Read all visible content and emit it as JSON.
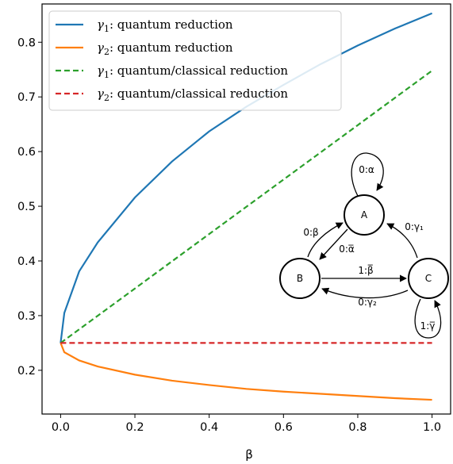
{
  "chart_data": {
    "type": "line",
    "title": "",
    "xlabel": "β",
    "ylabel": "",
    "xlim": [
      -0.05,
      1.05
    ],
    "ylim": [
      0.12,
      0.87
    ],
    "xticks": [
      "0.0",
      "0.2",
      "0.4",
      "0.6",
      "0.8",
      "1.0"
    ],
    "yticks": [
      "0.2",
      "0.3",
      "0.4",
      "0.5",
      "0.6",
      "0.7",
      "0.8"
    ],
    "grid": false,
    "legend_position": "top-left",
    "series": [
      {
        "name": "γ1: quantum reduction",
        "color": "#1f77b4",
        "style": "solid",
        "x": [
          0,
          0.01,
          0.05,
          0.1,
          0.2,
          0.3,
          0.4,
          0.5,
          0.6,
          0.7,
          0.8,
          0.9,
          1.0
        ],
        "y": [
          0.25,
          0.305,
          0.381,
          0.434,
          0.516,
          0.582,
          0.637,
          0.682,
          0.722,
          0.76,
          0.794,
          0.825,
          0.853
        ]
      },
      {
        "name": "γ2: quantum reduction",
        "color": "#ff7f0e",
        "style": "solid",
        "x": [
          0,
          0.01,
          0.05,
          0.1,
          0.2,
          0.3,
          0.4,
          0.5,
          0.6,
          0.7,
          0.8,
          0.9,
          1.0
        ],
        "y": [
          0.25,
          0.233,
          0.218,
          0.207,
          0.192,
          0.181,
          0.173,
          0.166,
          0.161,
          0.157,
          0.153,
          0.149,
          0.146
        ]
      },
      {
        "name": "γ1: quantum/classical reduction",
        "color": "#2ca02c",
        "style": "dashed",
        "x": [
          0,
          1.0
        ],
        "y": [
          0.25,
          0.748
        ]
      },
      {
        "name": "γ2: quantum/classical reduction",
        "color": "#d62728",
        "style": "dashed",
        "x": [
          0,
          1.0
        ],
        "y": [
          0.25,
          0.25
        ]
      }
    ],
    "legend": [
      {
        "sym": "γ",
        "sub": "1",
        "text": ": quantum reduction"
      },
      {
        "sym": "γ",
        "sub": "2",
        "text": ": quantum reduction"
      },
      {
        "sym": "γ",
        "sub": "1",
        "text": ": quantum/classical reduction"
      },
      {
        "sym": "γ",
        "sub": "2",
        "text": ": quantum/classical reduction"
      }
    ],
    "inset_automaton": {
      "states": [
        "A",
        "B",
        "C"
      ],
      "edges": {
        "A_self": "0:α",
        "B_to_A": "0:β",
        "A_to_B": "0:α̅",
        "C_to_A": "0:γ₁",
        "B_to_C": "1:β̅",
        "C_to_B": "0:γ₂",
        "C_self": "1:γ̅"
      }
    }
  }
}
